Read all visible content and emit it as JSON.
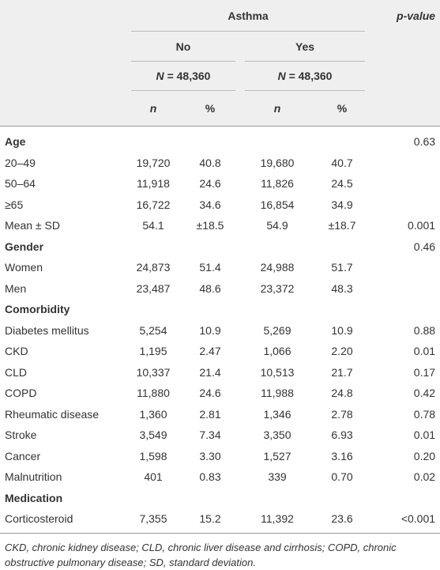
{
  "table": {
    "header": {
      "group": "Asthma",
      "p_value": "p-value",
      "subgroups": [
        "No",
        "Yes"
      ],
      "n_symbol": [
        "N",
        "N"
      ],
      "n_value": [
        "= 48,360",
        "= 48,360"
      ],
      "cols": [
        "n",
        "%",
        "n",
        "%"
      ]
    },
    "rows": [
      {
        "label": "Age",
        "section": true,
        "p": "0.63"
      },
      {
        "label": "20–49",
        "values": [
          "19,720",
          "40.8",
          "19,680",
          "40.7"
        ]
      },
      {
        "label": "50–64",
        "values": [
          "11,918",
          "24.6",
          "11,826",
          "24.5"
        ]
      },
      {
        "label": "≥65",
        "values": [
          "16,722",
          "34.6",
          "16,854",
          "34.9"
        ]
      },
      {
        "label": "Mean ± SD",
        "values": [
          "54.1",
          "±18.5",
          "54.9",
          "±18.7"
        ],
        "p": "0.001"
      },
      {
        "label": "Gender",
        "section": true,
        "p": "0.46"
      },
      {
        "label": "Women",
        "values": [
          "24,873",
          "51.4",
          "24,988",
          "51.7"
        ]
      },
      {
        "label": "Men",
        "values": [
          "23,487",
          "48.6",
          "23,372",
          "48.3"
        ]
      },
      {
        "label": "Comorbidity",
        "section": true
      },
      {
        "label": "Diabetes mellitus",
        "values": [
          "5,254",
          "10.9",
          "5,269",
          "10.9"
        ],
        "p": "0.88"
      },
      {
        "label": "CKD",
        "values": [
          "1,195",
          "2.47",
          "1,066",
          "2.20"
        ],
        "p": "0.01"
      },
      {
        "label": "CLD",
        "values": [
          "10,337",
          "21.4",
          "10,513",
          "21.7"
        ],
        "p": "0.17"
      },
      {
        "label": "COPD",
        "values": [
          "11,880",
          "24.6",
          "11,988",
          "24.8"
        ],
        "p": "0.42"
      },
      {
        "label": "Rheumatic disease",
        "values": [
          "1,360",
          "2.81",
          "1,346",
          "2.78"
        ],
        "p": "0.78"
      },
      {
        "label": "Stroke",
        "values": [
          "3,549",
          "7.34",
          "3,350",
          "6.93"
        ],
        "p": "0.01"
      },
      {
        "label": "Cancer",
        "values": [
          "1,598",
          "3.30",
          "1,527",
          "3.16"
        ],
        "p": "0.20"
      },
      {
        "label": "Malnutrition",
        "values": [
          "401",
          "0.83",
          "339",
          "0.70"
        ],
        "p": "0.02"
      },
      {
        "label": "Medication",
        "section": true
      },
      {
        "label": "Corticosteroid",
        "values": [
          "7,355",
          "15.2",
          "11,392",
          "23.6"
        ],
        "p": "<0.001"
      }
    ],
    "footnote": "CKD, chronic kidney disease; CLD, chronic liver disease and cirrhosis; COPD, chronic obstructive pulmonary disease; SD, standard deviation."
  }
}
